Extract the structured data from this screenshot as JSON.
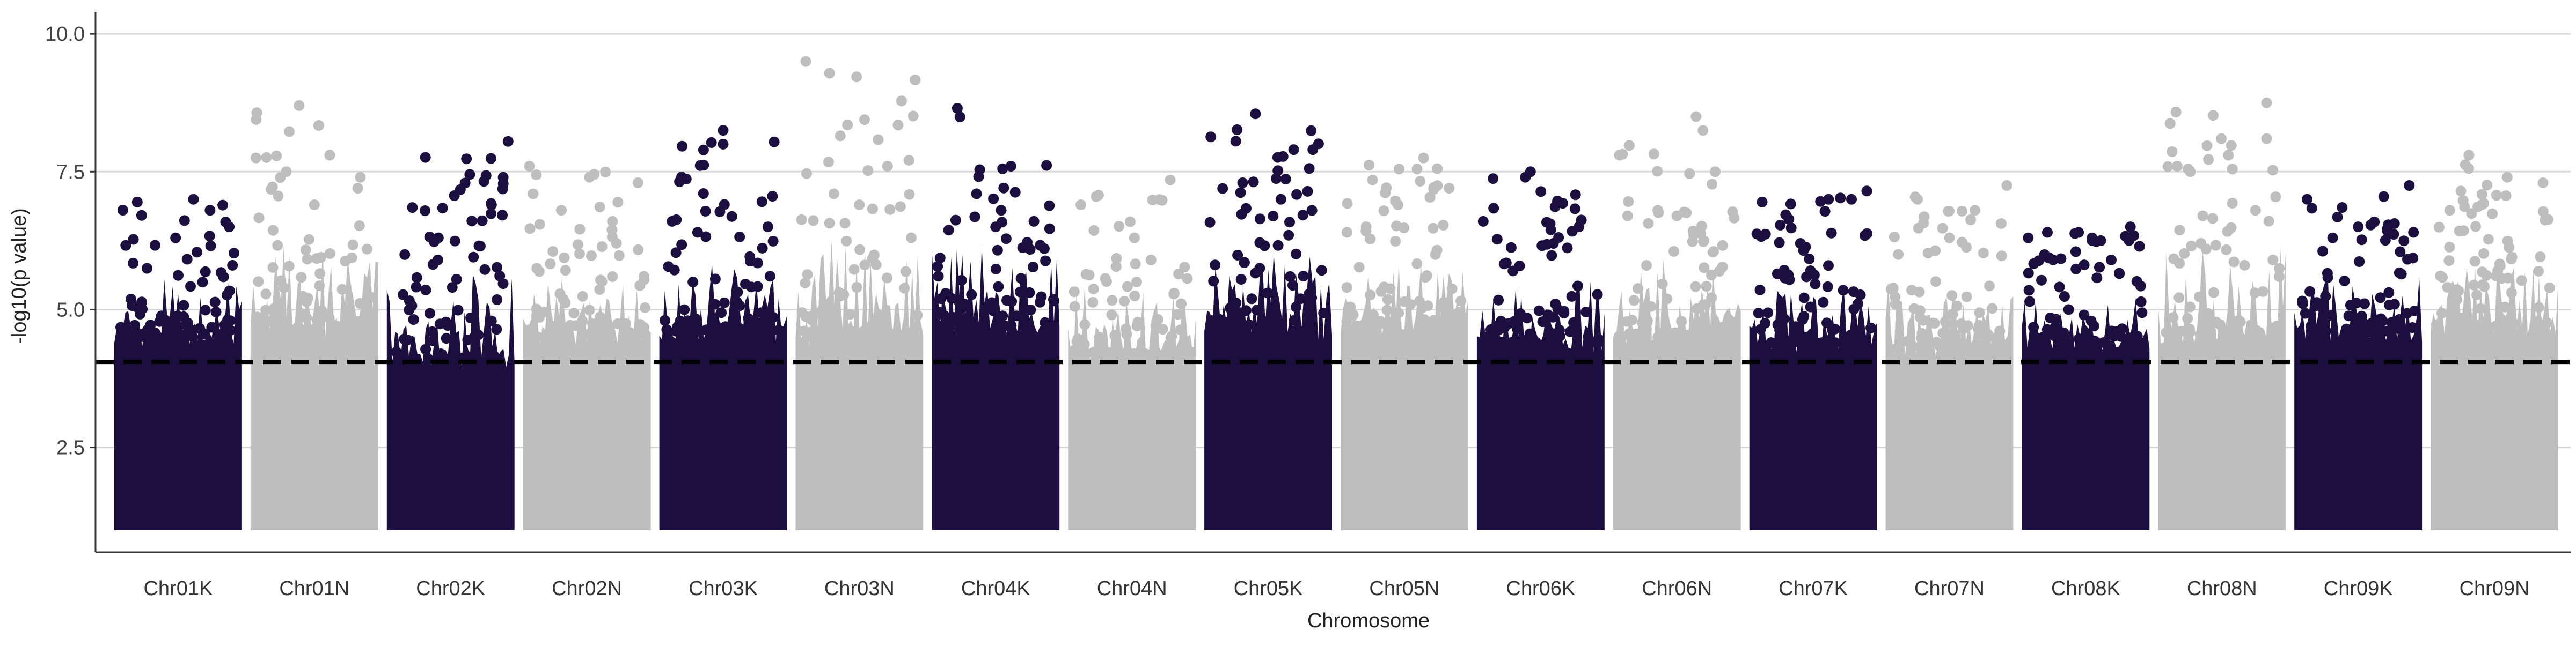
{
  "chart_data": {
    "type": "scatter",
    "subtype": "manhattan",
    "title": "",
    "xlabel": "Chromosome",
    "ylabel": "-log10(p value)",
    "ylim": [
      0.6,
      10.4
    ],
    "yticks": [
      {
        "value": 2.5,
        "label": "2.5"
      },
      {
        "value": 5.0,
        "label": "5.0"
      },
      {
        "value": 7.5,
        "label": "7.5"
      },
      {
        "value": 10.0,
        "label": "10.0"
      }
    ],
    "grid": true,
    "legend": "none",
    "threshold": {
      "value": 4.05,
      "style": "dashed",
      "color": "#000000"
    },
    "colors": {
      "odd": "#1c0f3f",
      "even": "#bebebe",
      "grid": "#d9d9d9",
      "axis": "#333333"
    },
    "baseline": 1.0,
    "chromosomes": [
      {
        "label": "Chr01K",
        "floor": 4.3,
        "top": 7.0,
        "peaks": [
          [
            0.18,
            6.95
          ],
          [
            0.62,
            7.0
          ],
          [
            0.75,
            6.8
          ],
          [
            0.48,
            6.3
          ],
          [
            0.9,
            6.5
          ]
        ]
      },
      {
        "label": "Chr01N",
        "floor": 4.4,
        "top": 8.7,
        "peaks": [
          [
            0.38,
            8.7
          ],
          [
            0.62,
            7.8
          ],
          [
            0.28,
            7.5
          ],
          [
            0.84,
            7.2
          ],
          [
            0.5,
            6.9
          ]
        ]
      },
      {
        "label": "Chr02K",
        "floor": 3.9,
        "top": 8.05,
        "peaks": [
          [
            0.95,
            8.05
          ],
          [
            0.65,
            7.45
          ],
          [
            0.2,
            6.85
          ],
          [
            0.82,
            6.9
          ],
          [
            0.4,
            5.9
          ]
        ]
      },
      {
        "label": "Chr02N",
        "floor": 4.3,
        "top": 7.6,
        "peaks": [
          [
            0.05,
            7.6
          ],
          [
            0.52,
            7.4
          ],
          [
            0.9,
            7.3
          ],
          [
            0.3,
            6.8
          ],
          [
            0.7,
            6.6
          ]
        ]
      },
      {
        "label": "Chr03K",
        "floor": 4.4,
        "top": 8.25,
        "peaks": [
          [
            0.5,
            8.25
          ],
          [
            0.5,
            8.0
          ],
          [
            0.1,
            6.6
          ],
          [
            0.85,
            6.5
          ],
          [
            0.3,
            6.4
          ]
        ]
      },
      {
        "label": "Chr03N",
        "floor": 4.3,
        "top": 9.5,
        "peaks": [
          [
            0.08,
            9.5
          ],
          [
            0.35,
            8.15
          ],
          [
            0.72,
            7.6
          ],
          [
            0.3,
            7.1
          ],
          [
            0.5,
            6.9
          ]
        ]
      },
      {
        "label": "Chr04K",
        "floor": 4.5,
        "top": 8.65,
        "peaks": [
          [
            0.2,
            8.65
          ],
          [
            0.62,
            7.6
          ],
          [
            0.35,
            7.1
          ],
          [
            0.8,
            6.6
          ],
          [
            0.5,
            6.5
          ]
        ]
      },
      {
        "label": "Chr04N",
        "floor": 4.0,
        "top": 7.35,
        "peaks": [
          [
            0.8,
            7.35
          ],
          [
            0.22,
            7.05
          ],
          [
            0.52,
            6.3
          ],
          [
            0.1,
            6.9
          ],
          [
            0.65,
            5.9
          ]
        ]
      },
      {
        "label": "Chr05K",
        "floor": 4.4,
        "top": 8.55,
        "peaks": [
          [
            0.4,
            8.55
          ],
          [
            0.7,
            7.9
          ],
          [
            0.85,
            7.9
          ],
          [
            0.3,
            7.3
          ],
          [
            0.6,
            7.0
          ]
        ]
      },
      {
        "label": "Chr05N",
        "floor": 4.5,
        "top": 7.75,
        "peaks": [
          [
            0.65,
            7.75
          ],
          [
            0.25,
            7.35
          ],
          [
            0.85,
            7.2
          ],
          [
            0.45,
            6.9
          ],
          [
            0.05,
            6.4
          ]
        ]
      },
      {
        "label": "Chr06K",
        "floor": 4.2,
        "top": 7.5,
        "peaks": [
          [
            0.42,
            7.5
          ],
          [
            0.38,
            7.4
          ],
          [
            0.05,
            6.6
          ],
          [
            0.8,
            6.5
          ],
          [
            0.6,
            6.2
          ]
        ]
      },
      {
        "label": "Chr06N",
        "floor": 4.3,
        "top": 8.5,
        "peaks": [
          [
            0.65,
            8.5
          ],
          [
            0.05,
            7.8
          ],
          [
            0.8,
            7.5
          ],
          [
            0.35,
            6.8
          ],
          [
            0.5,
            6.7
          ]
        ]
      },
      {
        "label": "Chr07K",
        "floor": 4.2,
        "top": 7.15,
        "peaks": [
          [
            0.92,
            7.15
          ],
          [
            0.62,
            7.0
          ],
          [
            0.1,
            6.95
          ],
          [
            0.8,
            7.0
          ],
          [
            0.4,
            6.2
          ]
        ]
      },
      {
        "label": "Chr07N",
        "floor": 4.1,
        "top": 7.25,
        "peaks": [
          [
            0.95,
            7.25
          ],
          [
            0.25,
            7.0
          ],
          [
            0.7,
            6.8
          ],
          [
            0.5,
            6.3
          ],
          [
            0.1,
            6.0
          ]
        ]
      },
      {
        "label": "Chr08K",
        "floor": 4.2,
        "top": 6.5,
        "peaks": [
          [
            0.85,
            6.5
          ],
          [
            0.2,
            6.4
          ],
          [
            0.55,
            6.3
          ],
          [
            0.05,
            6.3
          ],
          [
            0.7,
            5.9
          ]
        ]
      },
      {
        "label": "Chr08N",
        "floor": 4.3,
        "top": 8.75,
        "peaks": [
          [
            0.85,
            8.75
          ],
          [
            0.85,
            8.1
          ],
          [
            0.55,
            7.8
          ],
          [
            0.15,
            7.6
          ],
          [
            0.35,
            6.7
          ]
        ]
      },
      {
        "label": "Chr09K",
        "floor": 4.4,
        "top": 7.25,
        "peaks": [
          [
            0.9,
            7.25
          ],
          [
            0.7,
            7.05
          ],
          [
            0.1,
            7.0
          ],
          [
            0.5,
            6.5
          ],
          [
            0.3,
            6.3
          ]
        ]
      },
      {
        "label": "Chr09N",
        "floor": 4.5,
        "top": 7.8,
        "peaks": [
          [
            0.3,
            7.8
          ],
          [
            0.6,
            7.4
          ],
          [
            0.88,
            7.3
          ],
          [
            0.4,
            6.9
          ],
          [
            0.15,
            6.8
          ]
        ]
      }
    ]
  }
}
